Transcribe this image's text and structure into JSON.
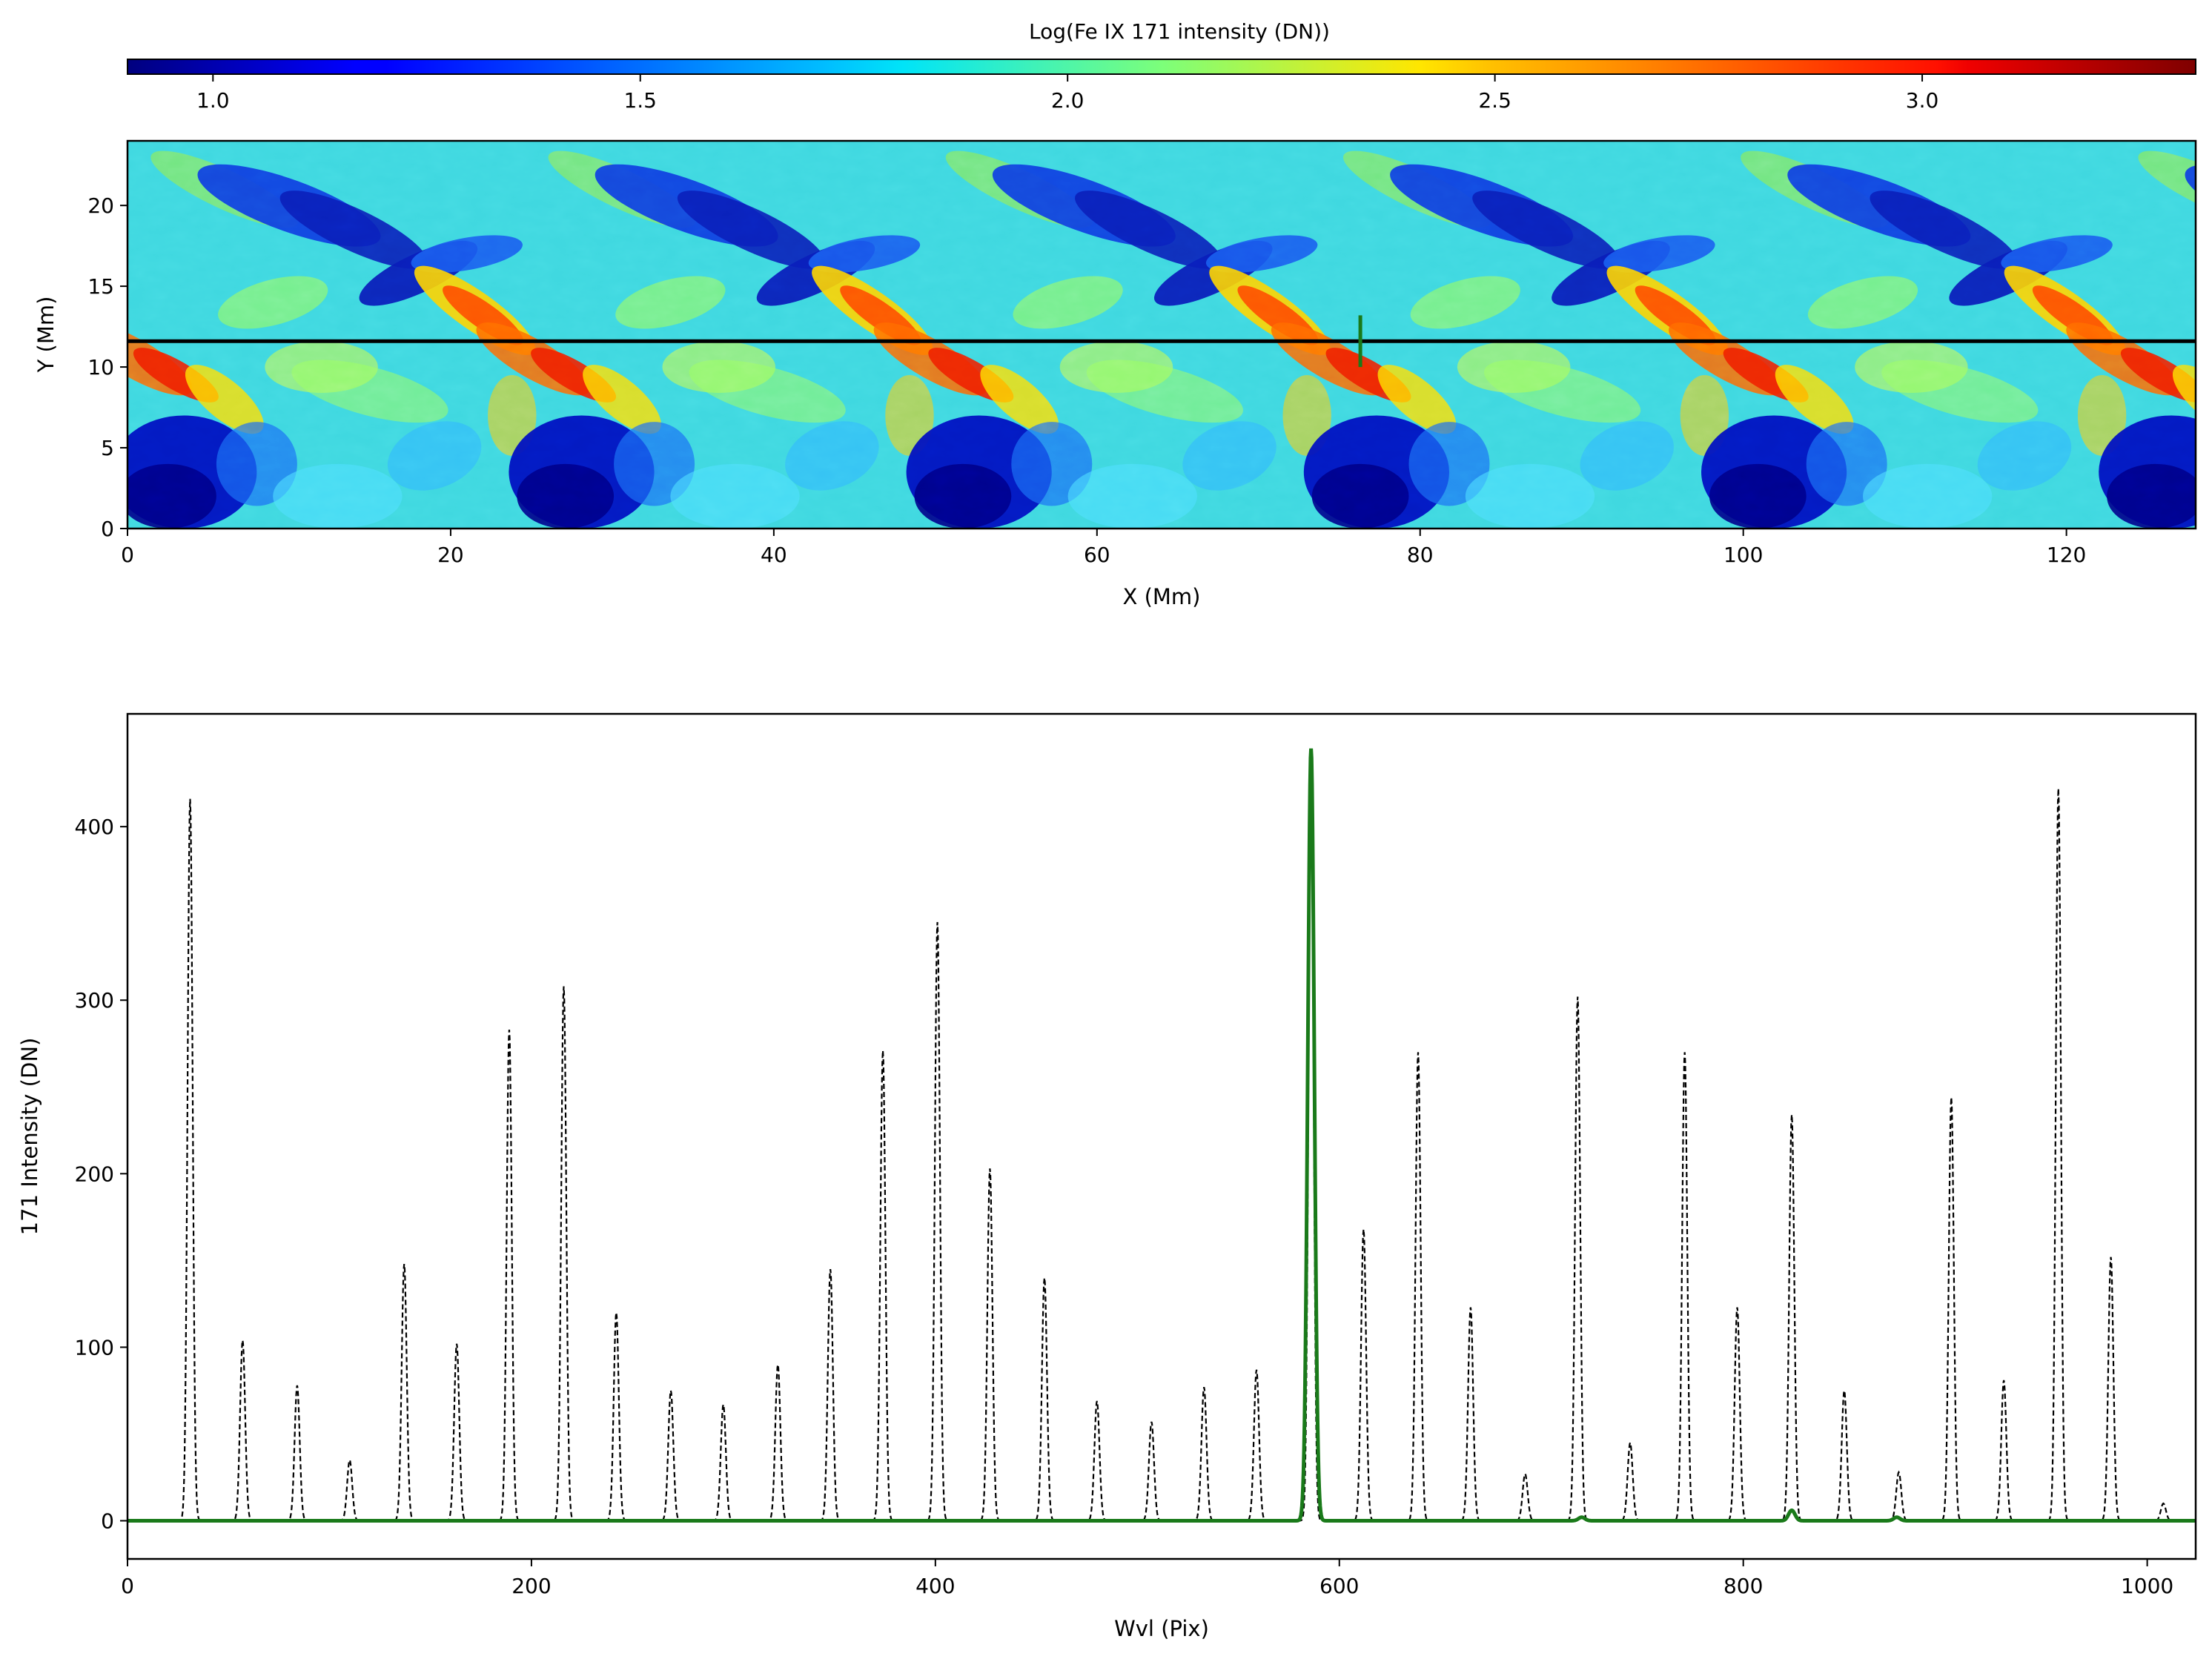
{
  "chart_data": [
    {
      "type": "heatmap",
      "colorbar": {
        "label": "Log(Fe IX 171 intensity (DN))",
        "colormap": "jet",
        "range": [
          0.9,
          3.32
        ],
        "ticks": [
          "1.0",
          "1.5",
          "2.0",
          "2.5",
          "3.0"
        ],
        "tick_values": [
          1.0,
          1.5,
          2.0,
          2.5,
          3.0
        ],
        "placement": "top"
      },
      "xlabel": "X (Mm)",
      "ylabel": "Y (Mm)",
      "xlim": [
        0,
        128
      ],
      "ylim": [
        0,
        24
      ],
      "xticks": [
        "0",
        "20",
        "40",
        "60",
        "80",
        "100",
        "120"
      ],
      "xtick_values": [
        0,
        20,
        40,
        60,
        80,
        100,
        120
      ],
      "yticks": [
        "0",
        "5",
        "10",
        "15",
        "20"
      ],
      "ytick_values": [
        0,
        5,
        10,
        15,
        20
      ],
      "pattern_period_x": 24.6,
      "slit_y": 11.6,
      "marker": {
        "x": 76.3,
        "y_range": [
          10.0,
          13.2
        ],
        "color": "#1a7a1a"
      },
      "slit_color": "#000000"
    },
    {
      "type": "line",
      "xlabel": "Wvl (Pix)",
      "ylabel": "171 Intensity (DN)",
      "xlim": [
        0,
        1024
      ],
      "ylim": [
        -22,
        465
      ],
      "xticks": [
        "0",
        "200",
        "400",
        "600",
        "800",
        "1000"
      ],
      "xtick_values": [
        0,
        200,
        400,
        600,
        800,
        1000
      ],
      "yticks": [
        "0",
        "100",
        "200",
        "300",
        "400"
      ],
      "ytick_values": [
        0,
        100,
        200,
        300,
        400
      ],
      "series": [
        {
          "style": "dashed",
          "color": "#000000",
          "peaks": [
            {
              "x": 31,
              "y": 416
            },
            {
              "x": 57,
              "y": 104
            },
            {
              "x": 84,
              "y": 78
            },
            {
              "x": 110,
              "y": 35
            },
            {
              "x": 137,
              "y": 148
            },
            {
              "x": 163,
              "y": 102
            },
            {
              "x": 189,
              "y": 283
            },
            {
              "x": 216,
              "y": 308
            },
            {
              "x": 242,
              "y": 120
            },
            {
              "x": 269,
              "y": 75
            },
            {
              "x": 295,
              "y": 67
            },
            {
              "x": 322,
              "y": 90
            },
            {
              "x": 348,
              "y": 145
            },
            {
              "x": 374,
              "y": 271
            },
            {
              "x": 401,
              "y": 345
            },
            {
              "x": 427,
              "y": 203
            },
            {
              "x": 454,
              "y": 140
            },
            {
              "x": 480,
              "y": 69
            },
            {
              "x": 507,
              "y": 57
            },
            {
              "x": 533,
              "y": 77
            },
            {
              "x": 559,
              "y": 87
            },
            {
              "x": 586,
              "y": 440
            },
            {
              "x": 612,
              "y": 168
            },
            {
              "x": 639,
              "y": 270
            },
            {
              "x": 665,
              "y": 123
            },
            {
              "x": 692,
              "y": 27
            },
            {
              "x": 718,
              "y": 302
            },
            {
              "x": 744,
              "y": 45
            },
            {
              "x": 771,
              "y": 270
            },
            {
              "x": 797,
              "y": 123
            },
            {
              "x": 824,
              "y": 234
            },
            {
              "x": 850,
              "y": 75
            },
            {
              "x": 877,
              "y": 28
            },
            {
              "x": 903,
              "y": 244
            },
            {
              "x": 929,
              "y": 81
            },
            {
              "x": 956,
              "y": 422
            },
            {
              "x": 982,
              "y": 152
            },
            {
              "x": 1008,
              "y": 10
            }
          ]
        },
        {
          "style": "solid",
          "color": "#1a7a1a",
          "peaks": [
            {
              "x": 586,
              "y": 445
            },
            {
              "x": 720,
              "y": 2
            },
            {
              "x": 824,
              "y": 6
            },
            {
              "x": 876,
              "y": 2
            }
          ]
        }
      ]
    }
  ]
}
